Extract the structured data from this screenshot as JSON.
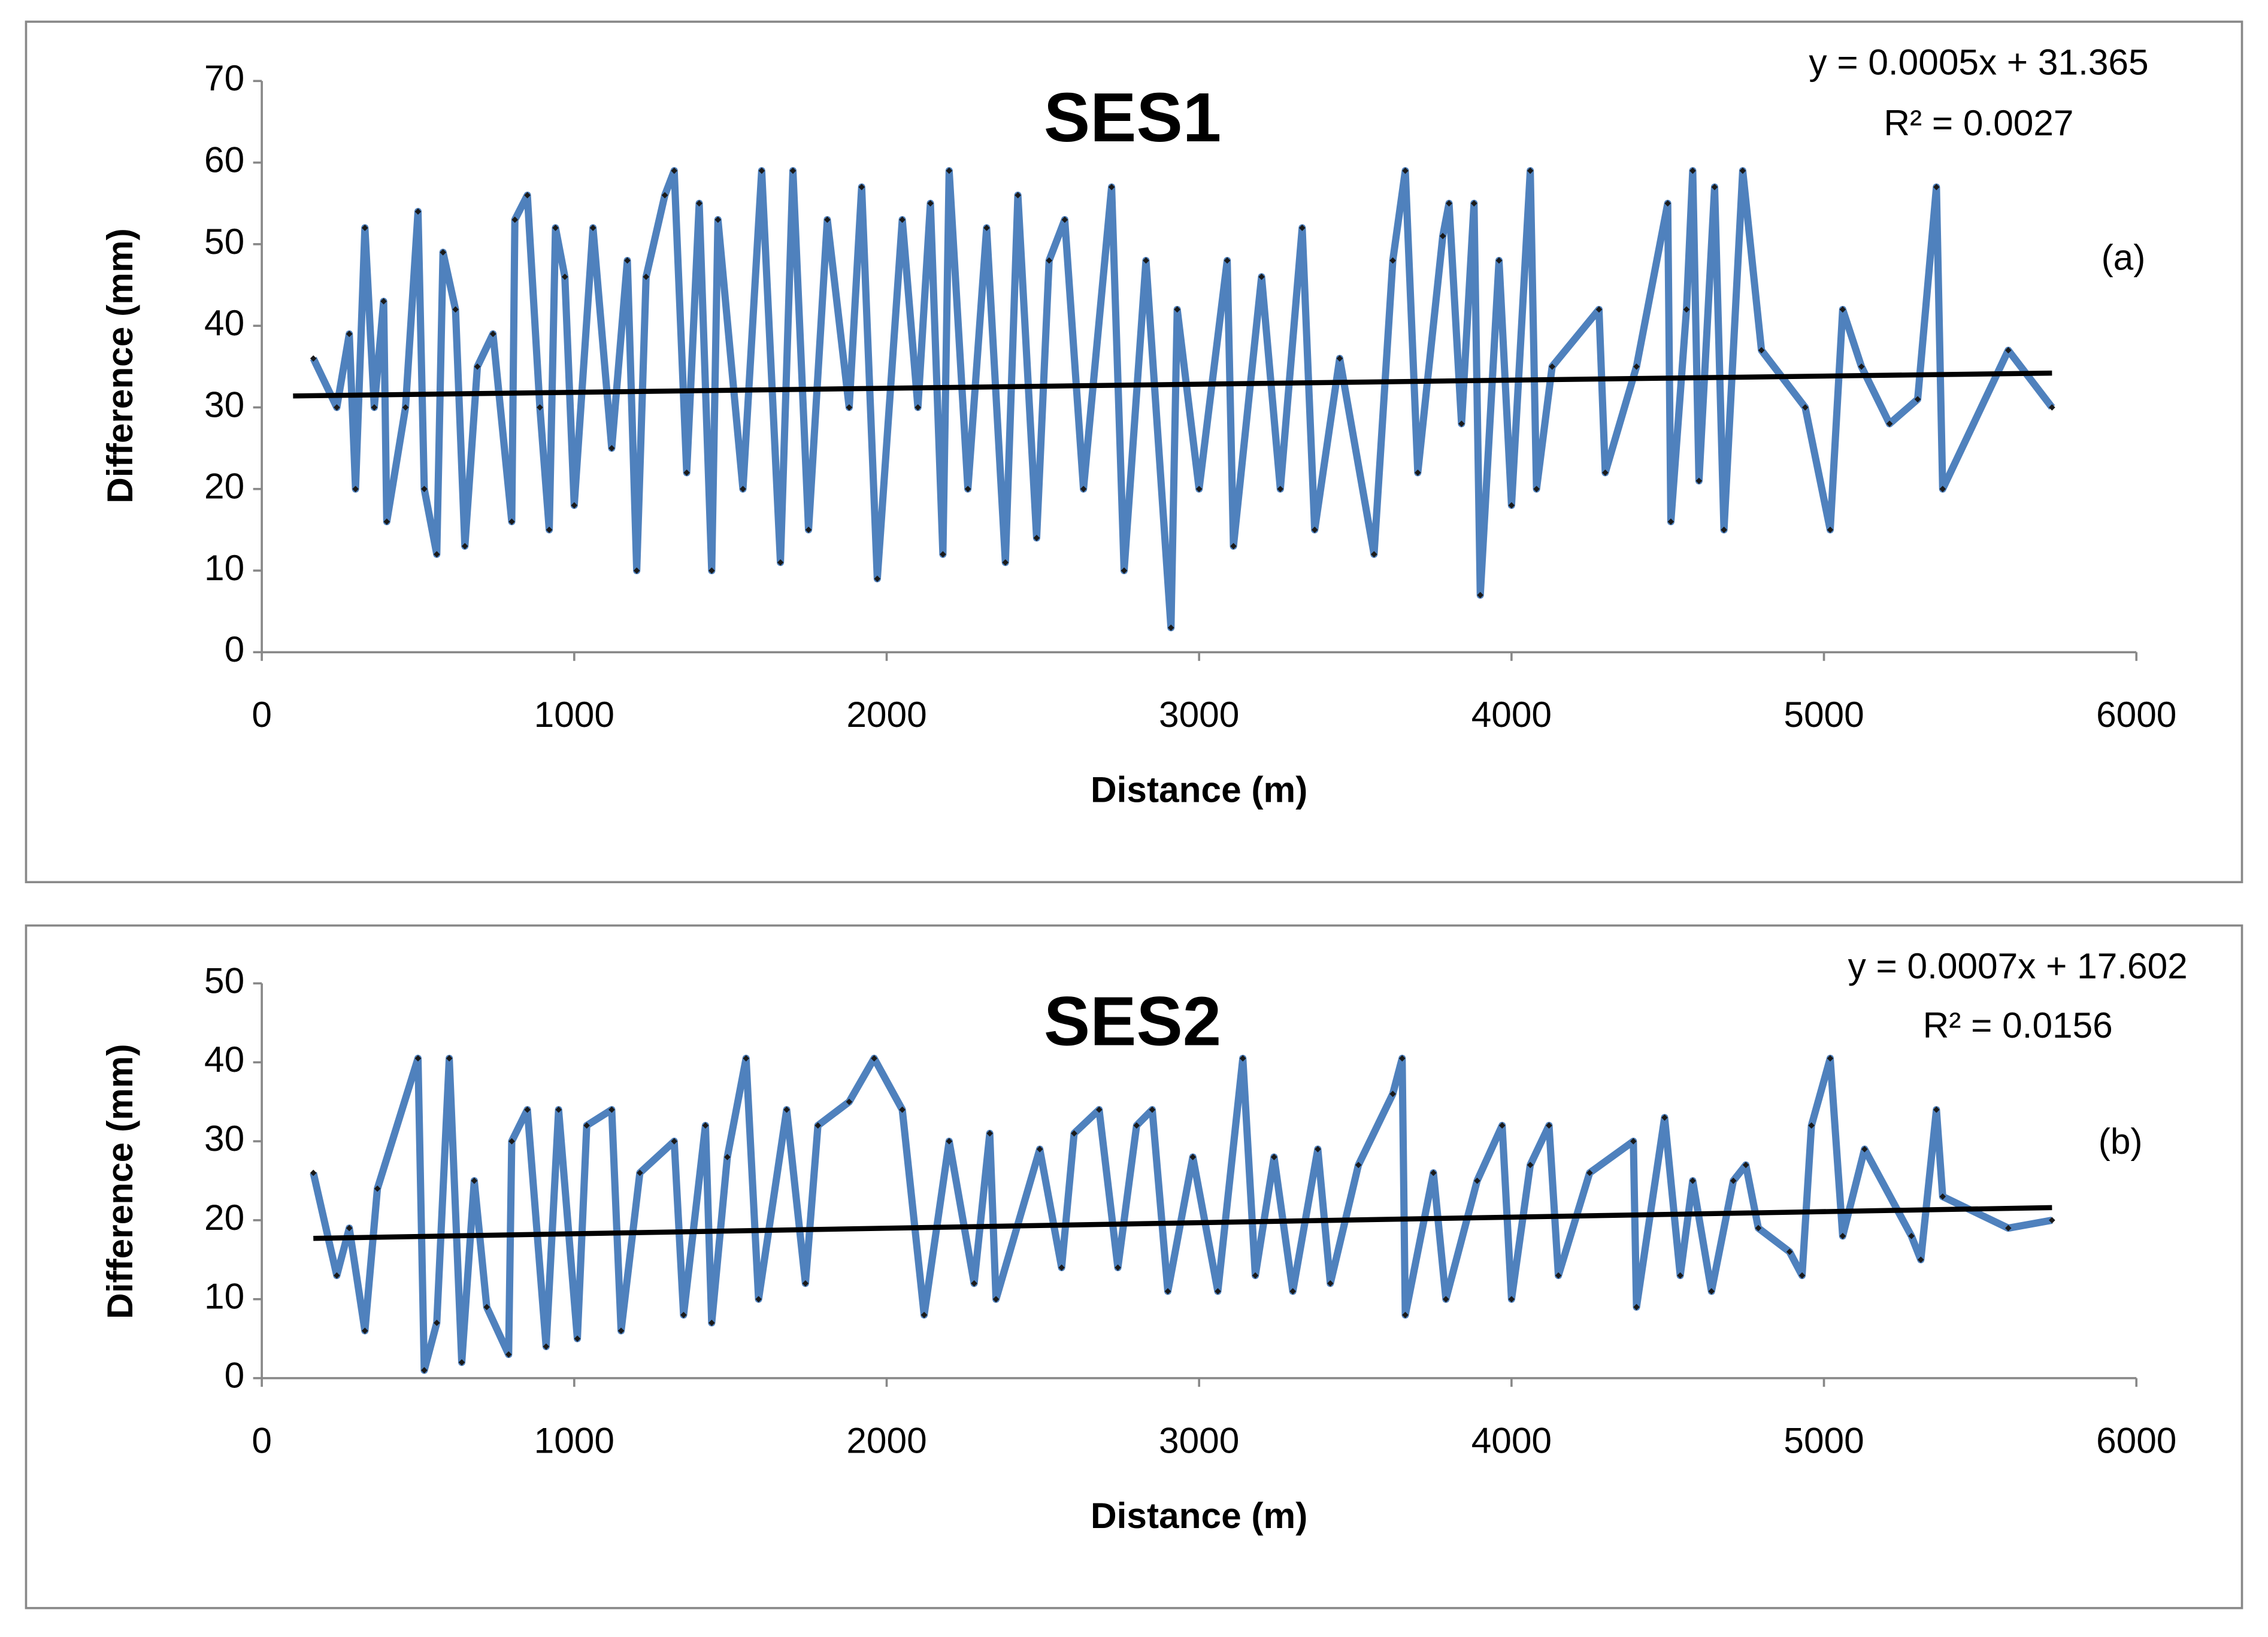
{
  "chart_data": [
    {
      "type": "line",
      "title": "SES1",
      "equation": "y = 0.0005x + 31.365",
      "r_squared": "R² = 0.0027",
      "panel_label": "(a)",
      "xlabel": "Distance (m)",
      "ylabel": "Difference (mm)",
      "xlim": [
        0,
        6000
      ],
      "xticks": [
        0,
        1000,
        2000,
        3000,
        4000,
        5000,
        6000
      ],
      "ylim": [
        0,
        70
      ],
      "yticks": [
        0,
        10,
        20,
        30,
        40,
        50,
        60,
        70
      ],
      "series": [
        {
          "color": "#4f81bd",
          "marker_color": "#1a1a1a",
          "x": [
            165,
            240,
            280,
            300,
            330,
            360,
            390,
            400,
            460,
            500,
            520,
            560,
            580,
            620,
            650,
            690,
            740,
            800,
            810,
            850,
            890,
            920,
            940,
            970,
            1000,
            1060,
            1120,
            1170,
            1200,
            1230,
            1290,
            1320,
            1360,
            1400,
            1440,
            1460,
            1540,
            1600,
            1660,
            1700,
            1750,
            1810,
            1880,
            1920,
            1970,
            2050,
            2100,
            2140,
            2180,
            2200,
            2260,
            2320,
            2380,
            2420,
            2480,
            2520,
            2570,
            2630,
            2720,
            2760,
            2830,
            2910,
            2930,
            3000,
            3090,
            3110,
            3200,
            3260,
            3330,
            3370,
            3450,
            3560,
            3620,
            3660,
            3700,
            3780,
            3800,
            3840,
            3880,
            3900,
            3960,
            4000,
            4060,
            4080,
            4130,
            4280,
            4300,
            4400,
            4500,
            4510,
            4560,
            4580,
            4600,
            4650,
            4680,
            4740,
            4800,
            4940,
            5020,
            5060,
            5120,
            5210,
            5300,
            5360,
            5380,
            5590,
            5730
          ],
          "values": [
            36,
            30,
            39,
            20,
            52,
            30,
            43,
            16,
            30,
            54,
            20,
            12,
            49,
            42,
            13,
            35,
            39,
            16,
            53,
            56,
            30,
            15,
            52,
            46,
            18,
            52,
            25,
            48,
            10,
            46,
            56,
            59,
            22,
            55,
            10,
            53,
            20,
            59,
            11,
            59,
            15,
            53,
            30,
            57,
            9,
            53,
            30,
            55,
            12,
            59,
            20,
            52,
            11,
            56,
            14,
            48,
            53,
            20,
            57,
            10,
            48,
            3,
            42,
            20,
            48,
            13,
            46,
            20,
            52,
            15,
            36,
            12,
            48,
            59,
            22,
            51,
            55,
            28,
            55,
            7,
            48,
            18,
            59,
            20,
            35,
            42,
            22,
            35,
            55,
            16,
            42,
            59,
            21,
            57,
            15,
            59,
            37,
            30,
            15,
            42,
            35,
            28,
            31,
            57,
            20,
            37,
            30
          ]
        }
      ],
      "trendline": {
        "color": "#000000",
        "x": [
          100,
          5730
        ],
        "values": [
          31.4,
          34.2
        ]
      }
    },
    {
      "type": "line",
      "title": "SES2",
      "equation": "y = 0.0007x + 17.602",
      "r_squared": "R² = 0.0156",
      "panel_label": "(b)",
      "xlabel": "Distance (m)",
      "ylabel": "Difference (mm)",
      "xlim": [
        0,
        6000
      ],
      "xticks": [
        0,
        1000,
        2000,
        3000,
        4000,
        5000,
        6000
      ],
      "ylim": [
        0,
        50
      ],
      "yticks": [
        0,
        10,
        20,
        30,
        40,
        50
      ],
      "series": [
        {
          "color": "#4f81bd",
          "marker_color": "#1a1a1a",
          "x": [
            165,
            240,
            280,
            330,
            370,
            500,
            520,
            560,
            600,
            640,
            680,
            720,
            790,
            800,
            850,
            910,
            950,
            1010,
            1040,
            1120,
            1150,
            1210,
            1320,
            1350,
            1420,
            1440,
            1490,
            1550,
            1590,
            1680,
            1740,
            1780,
            1880,
            1960,
            2050,
            2120,
            2200,
            2280,
            2330,
            2350,
            2490,
            2560,
            2600,
            2680,
            2740,
            2800,
            2850,
            2900,
            2980,
            3060,
            3140,
            3180,
            3240,
            3300,
            3380,
            3420,
            3510,
            3620,
            3650,
            3660,
            3750,
            3790,
            3890,
            3970,
            4000,
            4060,
            4120,
            4150,
            4250,
            4390,
            4400,
            4490,
            4540,
            4580,
            4640,
            4710,
            4750,
            4790,
            4890,
            4930,
            4960,
            5020,
            5060,
            5130,
            5280,
            5310,
            5360,
            5380,
            5590,
            5730
          ],
          "values": [
            26,
            13,
            19,
            6,
            24,
            40.5,
            1,
            7,
            40.5,
            2,
            25,
            9,
            3,
            30,
            34,
            4,
            34,
            5,
            32,
            34,
            6,
            26,
            30,
            8,
            32,
            7,
            28,
            40.5,
            10,
            34,
            12,
            32,
            35,
            40.5,
            34,
            8,
            30,
            12,
            31,
            10,
            29,
            14,
            31,
            34,
            14,
            32,
            34,
            11,
            28,
            11,
            40.5,
            13,
            28,
            11,
            29,
            12,
            27,
            36,
            40.5,
            8,
            26,
            10,
            25,
            32,
            10,
            27,
            32,
            13,
            26,
            30,
            9,
            33,
            13,
            25,
            11,
            25,
            27,
            19,
            16,
            13,
            32,
            40.5,
            18,
            29,
            18,
            15,
            34,
            23,
            19,
            20
          ]
        }
      ],
      "trendline": {
        "color": "#000000",
        "x": [
          165,
          5730
        ],
        "values": [
          17.7,
          21.6
        ]
      }
    }
  ]
}
